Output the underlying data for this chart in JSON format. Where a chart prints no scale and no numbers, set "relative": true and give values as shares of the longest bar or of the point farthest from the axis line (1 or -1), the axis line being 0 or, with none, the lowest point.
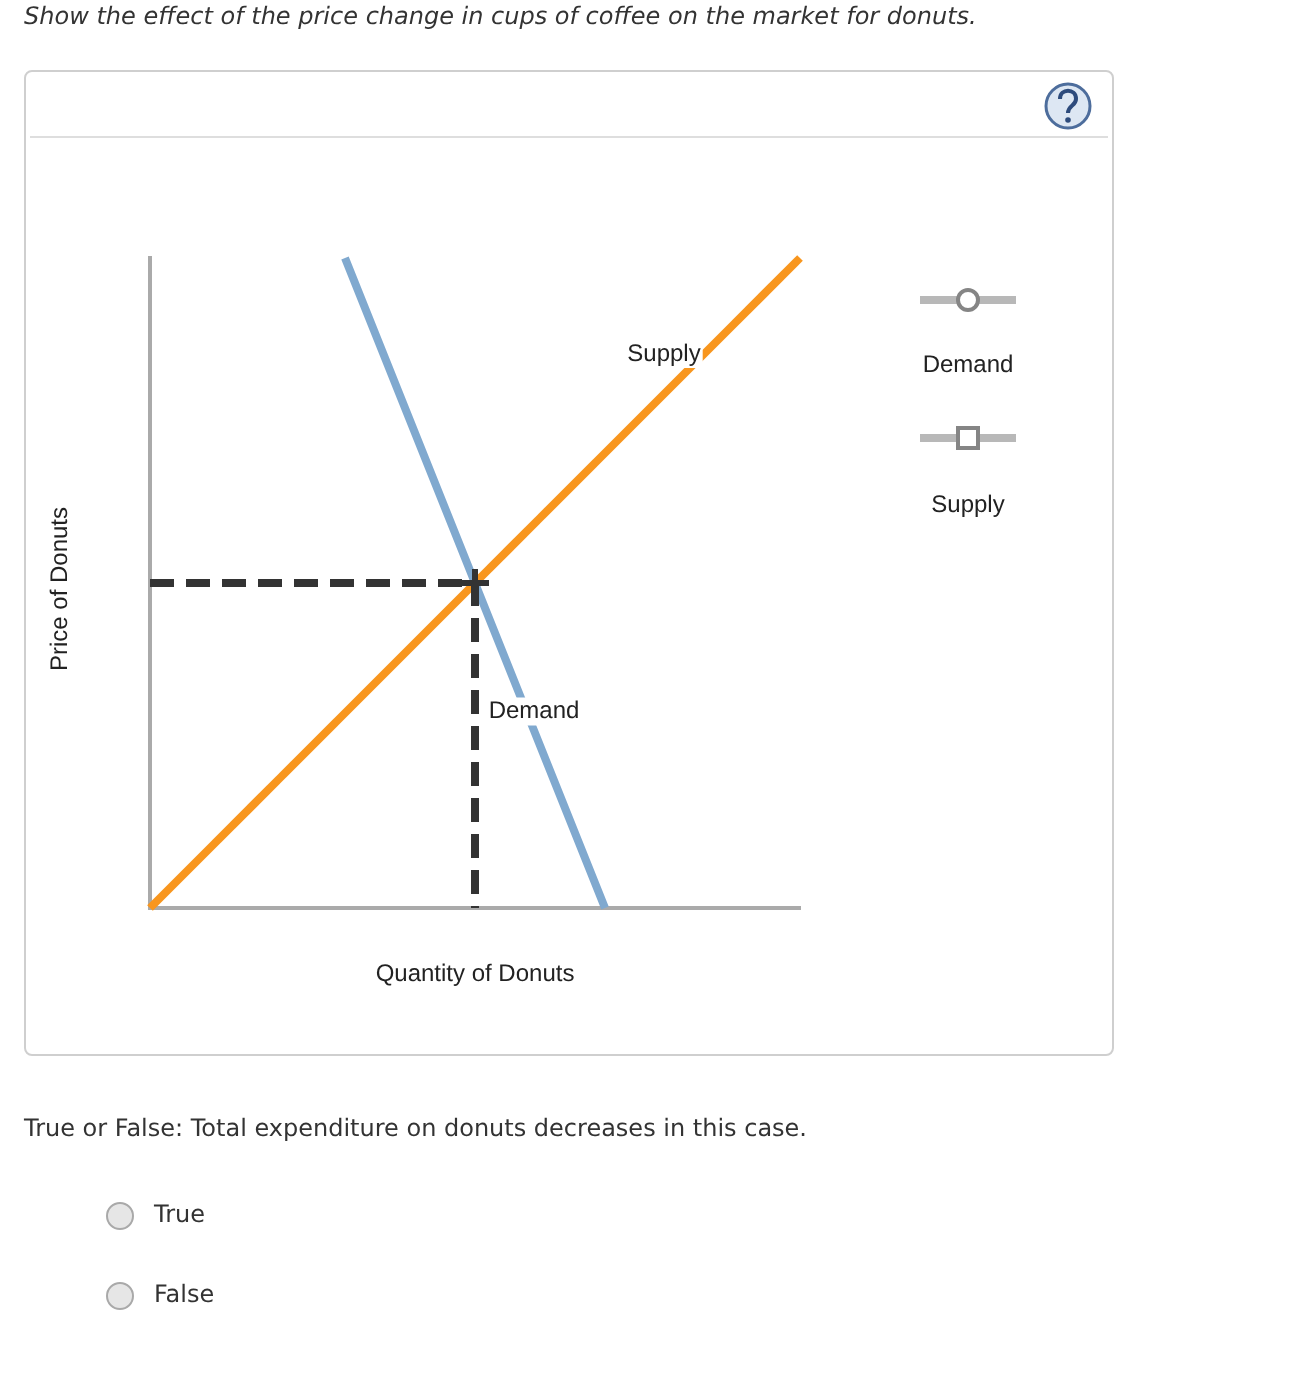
{
  "chart_data": {
    "type": "line",
    "title": "Show the effect of the price change in cups of coffee on the market for donuts.",
    "xlabel": "Quantity of Donuts",
    "ylabel": "Price of Donuts",
    "annotations": [
      "True or False: Total expenditure on donuts decreases in this case.",
      "True",
      "False"
    ],
    "categories": [
      null,
      null,
      null,
      null,
      null,
      null,
      null,
      null,
      null,
      null,
      null
    ],
    "relative": true,
    "marker": "none",
    "series": [
      {
        "name": "Demand",
        "color": "#80a9cf",
        "values": [
          null,
          null,
          null,
          1,
          0.75,
          0.5,
          0.25,
          0,
          null,
          null,
          null
        ]
      },
      {
        "name": "Supply",
        "color": "#f8961e",
        "values": [
          0,
          0.1,
          0.2,
          0.3,
          0.4,
          0.5,
          0.6,
          0.7,
          0.8,
          0.9,
          1
        ]
      },
      {
        "type": "step",
        "color": "#333333",
        "line_style": "dashed",
        "values": [
          0.5,
          0.5,
          0.5,
          0.5,
          0.5,
          0,
          null,
          null,
          null,
          null,
          null
        ]
      },
      {
        "color": "#333333",
        "marker": "cross",
        "values": [
          null,
          null,
          null,
          null,
          null,
          0.5,
          null,
          null,
          null,
          null,
          null
        ]
      }
    ]
  }
}
